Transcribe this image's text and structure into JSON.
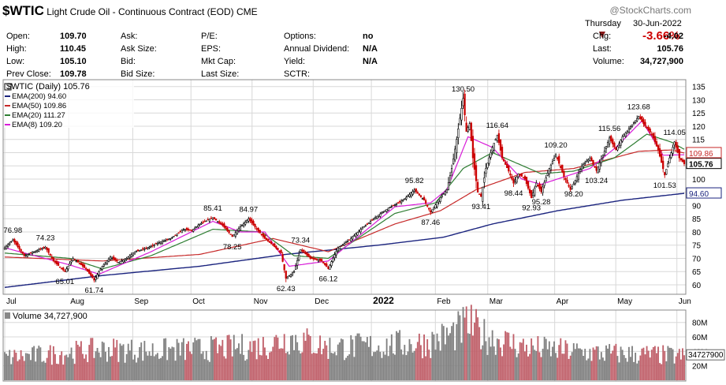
{
  "header": {
    "symbol": "$WTIC",
    "name": "Light Crude Oil - Continuous Contract (EOD)",
    "exchange": "CME",
    "watermark": "@StockCharts.com",
    "day": "Thursday",
    "date": "30-Jun-2022",
    "pct_change": "-3.66%",
    "rows": [
      [
        {
          "l": "Open:",
          "v": "109.70"
        },
        {
          "l": "Ask:",
          "v": ""
        },
        {
          "l": "P/E:",
          "v": ""
        },
        {
          "l": "Options:",
          "v": "no"
        },
        {
          "l": "Chg:",
          "v": "-4.02"
        }
      ],
      [
        {
          "l": "High:",
          "v": "110.45"
        },
        {
          "l": "Ask Size:",
          "v": ""
        },
        {
          "l": "EPS:",
          "v": ""
        },
        {
          "l": "Annual Dividend:",
          "v": "N/A"
        },
        {
          "l": "Last:",
          "v": "105.76"
        }
      ],
      [
        {
          "l": "Low:",
          "v": "105.10"
        },
        {
          "l": "Bid:",
          "v": ""
        },
        {
          "l": "Mkt Cap:",
          "v": ""
        },
        {
          "l": "Yield:",
          "v": "N/A"
        },
        {
          "l": "Volume:",
          "v": "34,727,900"
        }
      ],
      [
        {
          "l": "Prev Close:",
          "v": "109.78"
        },
        {
          "l": "Bid Size:",
          "v": ""
        },
        {
          "l": "Last Size:",
          "v": ""
        },
        {
          "l": "SCTR:",
          "v": ""
        },
        {
          "l": "",
          "v": ""
        }
      ]
    ]
  },
  "colors": {
    "up": "#000000",
    "down": "#cc0000",
    "ema200": "#1a237e",
    "ema50": "#c62828",
    "ema20": "#2e7d32",
    "ema8": "#d81bd8",
    "vol_up": "#808080",
    "vol_down": "#c0606a",
    "grid": "#d8d8d8"
  },
  "chart_data": {
    "type": "candlestick",
    "title": "$WTIC (Daily) 105.76",
    "ylim": [
      57,
      137
    ],
    "yticks": [
      60,
      65,
      70,
      75,
      80,
      85,
      90,
      95,
      100,
      105,
      110,
      115,
      120,
      125,
      130,
      135
    ],
    "months": [
      "Jul",
      "Aug",
      "Sep",
      "Oct",
      "Nov",
      "Dec",
      "2022",
      "Feb",
      "Mar",
      "Apr",
      "May",
      "Jun"
    ],
    "legend": [
      {
        "key": "ema200",
        "label": "EMA(200) 94.60"
      },
      {
        "key": "ema50",
        "label": "EMA(50) 109.86"
      },
      {
        "key": "ema20",
        "label": "EMA(20) 111.27"
      },
      {
        "key": "ema8",
        "label": "EMA(8) 109.20"
      }
    ],
    "price_labels": [
      {
        "text": "105.76",
        "key": "up",
        "y": 105.76
      },
      {
        "text": "109.86",
        "key": "ema50",
        "y": 109.86
      },
      {
        "text": "94.60",
        "key": "ema200",
        "y": 94.6
      }
    ],
    "anchors": [
      [
        0,
        74
      ],
      [
        5,
        76.98
      ],
      [
        12,
        71
      ],
      [
        20,
        73
      ],
      [
        25,
        74.23
      ],
      [
        30,
        69
      ],
      [
        37,
        65.01
      ],
      [
        42,
        70
      ],
      [
        50,
        66
      ],
      [
        55,
        61.74
      ],
      [
        60,
        67
      ],
      [
        65,
        70.5
      ],
      [
        70,
        68.5
      ],
      [
        75,
        70
      ],
      [
        80,
        72.5
      ],
      [
        88,
        74
      ],
      [
        95,
        76
      ],
      [
        102,
        77.5
      ],
      [
        110,
        81
      ],
      [
        115,
        80.5
      ],
      [
        120,
        83
      ],
      [
        128,
        85.41
      ],
      [
        134,
        82.5
      ],
      [
        140,
        78.25
      ],
      [
        145,
        82
      ],
      [
        150,
        84.97
      ],
      [
        155,
        81
      ],
      [
        160,
        77.5
      ],
      [
        165,
        75
      ],
      [
        170,
        72
      ],
      [
        173,
        62.43
      ],
      [
        178,
        65
      ],
      [
        182,
        73.34
      ],
      [
        188,
        70
      ],
      [
        195,
        69
      ],
      [
        199,
        66.12
      ],
      [
        205,
        74
      ],
      [
        212,
        77
      ],
      [
        220,
        81.5
      ],
      [
        228,
        85.5
      ],
      [
        236,
        89
      ],
      [
        245,
        92
      ],
      [
        252,
        95.82
      ],
      [
        258,
        92
      ],
      [
        262,
        87.46
      ],
      [
        268,
        93
      ],
      [
        272,
        96
      ],
      [
        275,
        104
      ],
      [
        278,
        115
      ],
      [
        280,
        123
      ],
      [
        282,
        130.5
      ],
      [
        284,
        118
      ],
      [
        286,
        121
      ],
      [
        288,
        108
      ],
      [
        291,
        95
      ],
      [
        293,
        93.41
      ],
      [
        296,
        104
      ],
      [
        300,
        112
      ],
      [
        303,
        116.64
      ],
      [
        306,
        108
      ],
      [
        310,
        103
      ],
      [
        313,
        98.44
      ],
      [
        316,
        102
      ],
      [
        320,
        100
      ],
      [
        324,
        92.93
      ],
      [
        327,
        98.5
      ],
      [
        330,
        95.28
      ],
      [
        335,
        104
      ],
      [
        339,
        109.2
      ],
      [
        344,
        101
      ],
      [
        348,
        96
      ],
      [
        350,
        98.2
      ],
      [
        355,
        105
      ],
      [
        360,
        108
      ],
      [
        364,
        103.24
      ],
      [
        368,
        109
      ],
      [
        372,
        115.56
      ],
      [
        376,
        111
      ],
      [
        380,
        116
      ],
      [
        384,
        119
      ],
      [
        390,
        123.68
      ],
      [
        394,
        120
      ],
      [
        398,
        117
      ],
      [
        402,
        111
      ],
      [
        406,
        101.53
      ],
      [
        409,
        108
      ],
      [
        412,
        114.05
      ],
      [
        415,
        108
      ],
      [
        418,
        105.76
      ]
    ],
    "ema_anchors": {
      "ema200": [
        [
          0,
          59
        ],
        [
          60,
          63.5
        ],
        [
          120,
          67
        ],
        [
          173,
          71.5
        ],
        [
          230,
          75
        ],
        [
          270,
          78
        ],
        [
          300,
          83
        ],
        [
          340,
          88
        ],
        [
          380,
          92
        ],
        [
          418,
          94.6
        ]
      ],
      "ema50": [
        [
          0,
          70.5
        ],
        [
          60,
          69
        ],
        [
          120,
          71.5
        ],
        [
          165,
          77.5
        ],
        [
          199,
          72.5
        ],
        [
          240,
          83
        ],
        [
          268,
          88
        ],
        [
          290,
          96
        ],
        [
          320,
          102.5
        ],
        [
          350,
          104
        ],
        [
          390,
          110.5
        ],
        [
          410,
          111
        ],
        [
          418,
          109.86
        ]
      ],
      "ema20": [
        [
          0,
          72
        ],
        [
          40,
          70
        ],
        [
          60,
          66
        ],
        [
          90,
          71
        ],
        [
          128,
          81
        ],
        [
          158,
          80
        ],
        [
          178,
          71
        ],
        [
          199,
          70
        ],
        [
          240,
          87
        ],
        [
          265,
          91
        ],
        [
          282,
          104
        ],
        [
          300,
          110
        ],
        [
          315,
          106
        ],
        [
          330,
          102
        ],
        [
          350,
          103
        ],
        [
          375,
          108
        ],
        [
          395,
          117
        ],
        [
          410,
          114
        ],
        [
          418,
          111.27
        ]
      ],
      "ema8": [
        [
          0,
          74
        ],
        [
          40,
          67.5
        ],
        [
          58,
          64
        ],
        [
          90,
          72.5
        ],
        [
          128,
          84
        ],
        [
          145,
          80
        ],
        [
          160,
          80
        ],
        [
          175,
          67
        ],
        [
          199,
          69
        ],
        [
          240,
          89.5
        ],
        [
          262,
          91
        ],
        [
          272,
          96
        ],
        [
          285,
          116
        ],
        [
          300,
          112
        ],
        [
          318,
          100
        ],
        [
          330,
          98
        ],
        [
          360,
          104
        ],
        [
          376,
          112
        ],
        [
          392,
          122
        ],
        [
          405,
          109
        ],
        [
          418,
          109.2
        ]
      ]
    },
    "annotations": [
      {
        "text": "76.98",
        "i": 5,
        "v": 76.98,
        "pos": "above"
      },
      {
        "text": "74.23",
        "i": 25,
        "v": 74.23,
        "pos": "above"
      },
      {
        "text": "65.01",
        "i": 37,
        "v": 65.01,
        "pos": "below"
      },
      {
        "text": "61.74",
        "i": 55,
        "v": 61.74,
        "pos": "below"
      },
      {
        "text": "85.41",
        "i": 128,
        "v": 85.41,
        "pos": "above"
      },
      {
        "text": "78.25",
        "i": 140,
        "v": 78.25,
        "pos": "below"
      },
      {
        "text": "84.97",
        "i": 150,
        "v": 84.97,
        "pos": "above"
      },
      {
        "text": "62.43",
        "i": 173,
        "v": 62.43,
        "pos": "below"
      },
      {
        "text": "73.34",
        "i": 182,
        "v": 73.34,
        "pos": "above"
      },
      {
        "text": "66.12",
        "i": 199,
        "v": 66.12,
        "pos": "below"
      },
      {
        "text": "95.82",
        "i": 252,
        "v": 95.82,
        "pos": "above"
      },
      {
        "text": "87.46",
        "i": 262,
        "v": 87.46,
        "pos": "below"
      },
      {
        "text": "130.50",
        "i": 282,
        "v": 130.5,
        "pos": "above"
      },
      {
        "text": "93.41",
        "i": 293,
        "v": 93.41,
        "pos": "below"
      },
      {
        "text": "116.64",
        "i": 303,
        "v": 116.64,
        "pos": "above"
      },
      {
        "text": "98.44",
        "i": 313,
        "v": 98.44,
        "pos": "below"
      },
      {
        "text": "92.93",
        "i": 324,
        "v": 92.93,
        "pos": "below"
      },
      {
        "text": "95.28",
        "i": 330,
        "v": 95.28,
        "pos": "below"
      },
      {
        "text": "109.20",
        "i": 339,
        "v": 109.2,
        "pos": "above"
      },
      {
        "text": "98.20",
        "i": 350,
        "v": 98.2,
        "pos": "below"
      },
      {
        "text": "103.24",
        "i": 364,
        "v": 103.24,
        "pos": "below"
      },
      {
        "text": "115.56",
        "i": 372,
        "v": 115.56,
        "pos": "above"
      },
      {
        "text": "123.68",
        "i": 390,
        "v": 123.68,
        "pos": "above"
      },
      {
        "text": "101.53",
        "i": 406,
        "v": 101.53,
        "pos": "below"
      },
      {
        "text": "114.05",
        "i": 412,
        "v": 114.05,
        "pos": "above"
      }
    ],
    "volume": {
      "title": "Volume 34,727,900",
      "ylim": [
        0,
        95
      ],
      "yticks": [
        {
          "v": 20,
          "label": "20M"
        },
        {
          "v": 40,
          "label": "40M"
        },
        {
          "v": 60,
          "label": "60M"
        },
        {
          "v": 80,
          "label": "80M"
        }
      ],
      "last": "34727900",
      "last_value": 34.7,
      "anchors": [
        [
          0,
          33
        ],
        [
          30,
          38
        ],
        [
          60,
          45
        ],
        [
          90,
          43
        ],
        [
          130,
          46
        ],
        [
          160,
          50
        ],
        [
          175,
          62
        ],
        [
          199,
          48
        ],
        [
          230,
          50
        ],
        [
          262,
          55
        ],
        [
          278,
          70
        ],
        [
          285,
          82
        ],
        [
          295,
          65
        ],
        [
          320,
          48
        ],
        [
          360,
          40
        ],
        [
          400,
          37
        ],
        [
          418,
          34.7
        ]
      ]
    }
  }
}
